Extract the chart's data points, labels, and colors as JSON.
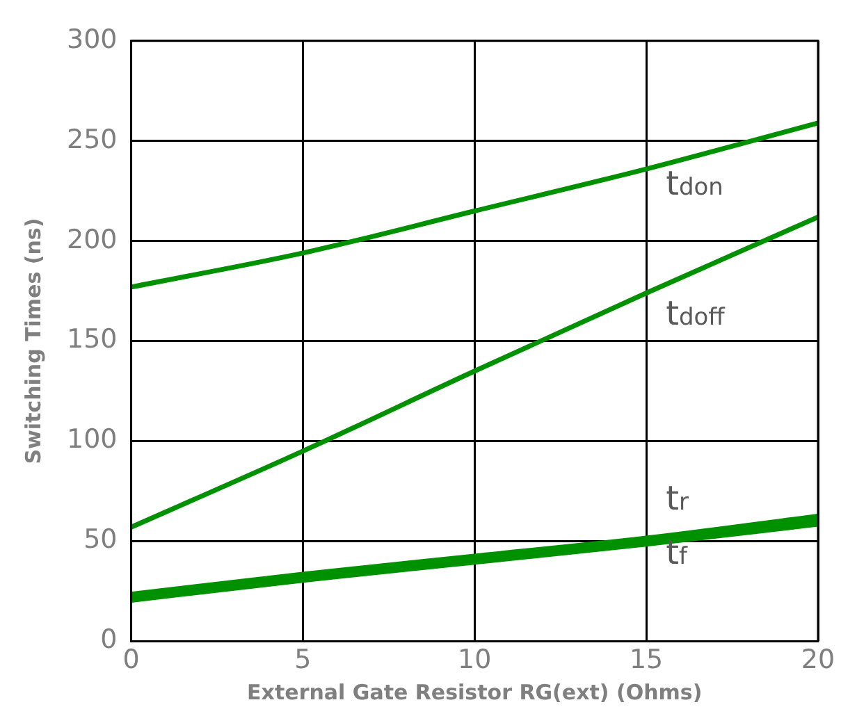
{
  "chart_data": {
    "type": "line",
    "xlabel": "External Gate Resistor RG(ext) (Ohms)",
    "ylabel": "Switching Times (ns)",
    "x": [
      0,
      5,
      10,
      15,
      20
    ],
    "xlim": [
      0,
      20
    ],
    "xticks": [
      0,
      5,
      10,
      15,
      20
    ],
    "ylim": [
      0,
      300
    ],
    "yticks": [
      0,
      50,
      100,
      150,
      200,
      250,
      300
    ],
    "grid": true,
    "legend": false,
    "marker": "none",
    "line_style": "solid",
    "series": [
      {
        "name": "t$_{don}$",
        "color": "#009100",
        "values": [
          177,
          194,
          215,
          236,
          259
        ]
      },
      {
        "name": "t$_{doff}$",
        "color": "#009100",
        "values": [
          57,
          95,
          135,
          174,
          212
        ]
      },
      {
        "name": "t$_{r}$",
        "color": "#009100",
        "values": [
          23,
          33,
          42,
          51,
          62
        ]
      },
      {
        "name": "t$_{f}$",
        "color": "#009100",
        "values": [
          21,
          31,
          40,
          49,
          59
        ]
      }
    ]
  }
}
